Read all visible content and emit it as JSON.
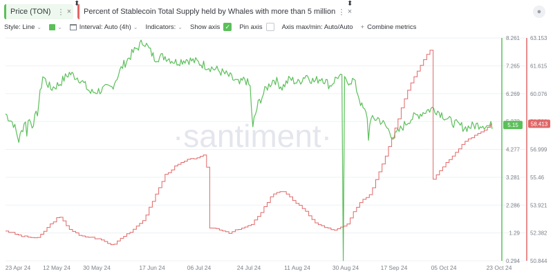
{
  "metrics": [
    {
      "label": "Price (TON)",
      "color": "#5bbf5a"
    },
    {
      "label": "Percent of Stablecoin Total Supply held by Whales with more than 5 million USD",
      "color": "#e06666"
    }
  ],
  "toolbar": {
    "style_label": "Style: Line",
    "interval_label": "Interval: Auto (4h)",
    "indicators_label": "Indicators:",
    "show_axis_label": "Show axis",
    "show_axis_checked": true,
    "pin_axis_label": "Pin axis",
    "pin_axis_checked": false,
    "axis_maxmin_label": "Axis max/min: Auto/Auto",
    "combine_label": "Combine metrics"
  },
  "watermark": "·santiment·",
  "chart_data": {
    "type": "line",
    "x_labels": [
      "23 Apr 24",
      "12 May 24",
      "30 May 24",
      "17 Jun 24",
      "06 Jul 24",
      "24 Jul 24",
      "11 Aug 24",
      "30 Aug 24",
      "17 Sep 24",
      "05 Oct 24",
      "23 Oct 24"
    ],
    "y_left": {
      "ticks": [
        "8.261",
        "7.265",
        "6.269",
        "5.273",
        "4.277",
        "3.281",
        "2.286",
        "1.29",
        "0.294"
      ],
      "min": 0.294,
      "max": 8.261,
      "color": "#5bbf5a"
    },
    "y_right": {
      "ticks": [
        "63.153",
        "61.615",
        "60.076",
        "58.538",
        "56.999",
        "55.46",
        "53.921",
        "52.382",
        "50.844"
      ],
      "min": 50.844,
      "max": 63.153,
      "color": "#e06666"
    },
    "series": [
      {
        "name": "Price (TON)",
        "axis": "left",
        "color": "#5bbf5a",
        "last_value": "5.15",
        "t": [
          0,
          3,
          5,
          8,
          10,
          12,
          14,
          17,
          20,
          24,
          28,
          32,
          36,
          40,
          44,
          48,
          52,
          56,
          60,
          64,
          68,
          72,
          76,
          80,
          84,
          88,
          90,
          92,
          93,
          93.1,
          95,
          98,
          101,
          104,
          107,
          110,
          113,
          116,
          119,
          122,
          125,
          128,
          131,
          134,
          137,
          140,
          143,
          146,
          149,
          152,
          155,
          158,
          161,
          164,
          167,
          170,
          173,
          176,
          179,
          182,
          183
        ],
        "values": [
          5.55,
          5.2,
          4.6,
          5.5,
          5.15,
          5.6,
          6.9,
          6.45,
          6.6,
          7.0,
          6.8,
          6.3,
          6.4,
          6.5,
          7.25,
          7.75,
          8.15,
          7.55,
          7.6,
          7.4,
          7.5,
          7.4,
          7.25,
          7.1,
          6.9,
          6.6,
          6.8,
          6.5,
          5.0,
          5.2,
          5.9,
          6.45,
          6.8,
          6.5,
          6.8,
          6.65,
          6.95,
          6.7,
          6.85,
          6.55,
          6.9,
          6.7,
          6.75,
          5.8,
          5.3,
          5.4,
          5.1,
          4.7,
          5.05,
          5.35,
          5.5,
          5.65,
          5.75,
          5.55,
          5.3,
          5.15,
          5.05,
          5.12,
          5.18,
          5.1,
          5.15
        ],
        "dips": [
          {
            "t": 127,
            "value": 0.3
          },
          {
            "t": 136.5,
            "value": 4.6
          },
          {
            "t": 8,
            "value": 4.75
          }
        ]
      },
      {
        "name": "Percent of Stablecoin Total Supply held by Whales with more than 5 million USD",
        "axis": "right",
        "color": "#e06666",
        "last_value": "58.413",
        "t": [
          0,
          6,
          12,
          17,
          20,
          24,
          28,
          32,
          36,
          40,
          44,
          48,
          52,
          56,
          60,
          64,
          68,
          72,
          74,
          75.5,
          76,
          80,
          84,
          88,
          92,
          96,
          100,
          104,
          108,
          112,
          116,
          120,
          124,
          128,
          131,
          134,
          137,
          140,
          143,
          146,
          149,
          152,
          155,
          158,
          159.8,
          160.2,
          161,
          164,
          167,
          170,
          173,
          176,
          179,
          181,
          183
        ],
        "values": [
          52.5,
          52.2,
          52.1,
          52.9,
          53.3,
          52.6,
          52.2,
          52.15,
          52.0,
          51.7,
          52.2,
          52.55,
          53.15,
          54.4,
          55.6,
          56.1,
          56.4,
          56.55,
          56.6,
          56.8,
          52.7,
          52.6,
          52.4,
          52.6,
          52.8,
          53.5,
          54.5,
          54.7,
          54.2,
          53.7,
          53.0,
          52.65,
          52.55,
          52.8,
          53.6,
          54.2,
          54.5,
          55.6,
          56.7,
          57.95,
          59.4,
          60.6,
          61.4,
          62.2,
          62.55,
          55.3,
          55.4,
          56.0,
          56.5,
          57.0,
          57.5,
          57.75,
          57.95,
          58.2,
          58.413
        ]
      }
    ],
    "grid": true,
    "legend": "top-left"
  }
}
